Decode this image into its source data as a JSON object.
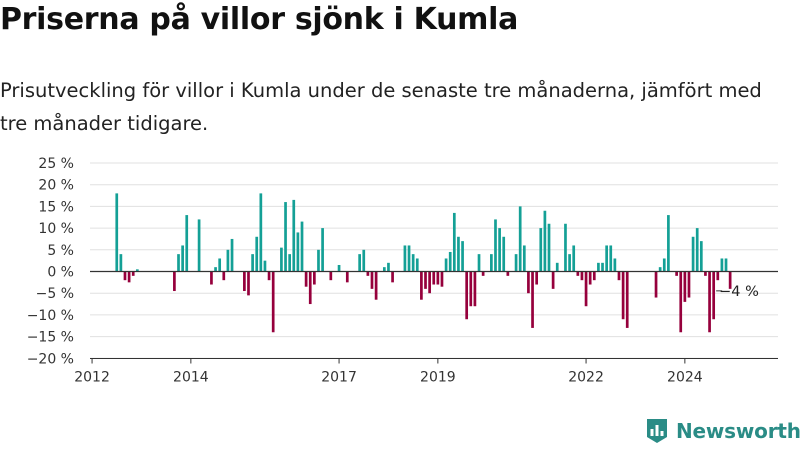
{
  "title": "Priserna på villor sjönk i Kumla",
  "subtitle": "Prisutveckling för villor i Kumla under de senaste tre månaderna, jämfört med tre månader tidigare.",
  "brand": {
    "name": "Newsworthy"
  },
  "colors": {
    "positive": "#14a096",
    "negative": "#96003c",
    "grid": "#e0e0e0",
    "axis": "#333333",
    "brand": "#2a8c86"
  },
  "chart_data": {
    "type": "bar",
    "title": "",
    "xlabel": "",
    "ylabel": "",
    "ylim": [
      -20,
      25
    ],
    "y_ticks": [
      25,
      20,
      15,
      10,
      5,
      0,
      -5,
      -10,
      -15,
      -20
    ],
    "y_tick_labels": [
      "25 %",
      "20 %",
      "15 %",
      "10 %",
      "5 %",
      "0 %",
      "−5 %",
      "−10 %",
      "−15 %",
      "−20 %"
    ],
    "x_ticks": [
      2012,
      2014,
      2017,
      2019,
      2022,
      2024
    ],
    "x_tick_labels": [
      "2012",
      "2014",
      "2017",
      "2019",
      "2022",
      "2024"
    ],
    "grid": true,
    "legend": "none",
    "annotation": {
      "label": "−4 %",
      "value": -4
    },
    "series": [
      {
        "values": [
          {
            "date": "2012-07",
            "value": 18
          },
          {
            "date": "2012-08",
            "value": 4
          },
          {
            "date": "2012-09",
            "value": -2
          },
          {
            "date": "2012-10",
            "value": -2.5
          },
          {
            "date": "2012-11",
            "value": -1
          },
          {
            "date": "2012-12",
            "value": 0.5
          },
          {
            "date": "2013-09",
            "value": -4.5
          },
          {
            "date": "2013-10",
            "value": 4
          },
          {
            "date": "2013-11",
            "value": 6
          },
          {
            "date": "2013-12",
            "value": 13
          },
          {
            "date": "2014-03",
            "value": 12
          },
          {
            "date": "2014-06",
            "value": -3
          },
          {
            "date": "2014-07",
            "value": 1
          },
          {
            "date": "2014-08",
            "value": 3
          },
          {
            "date": "2014-09",
            "value": -2
          },
          {
            "date": "2014-10",
            "value": 5
          },
          {
            "date": "2014-11",
            "value": 7.5
          },
          {
            "date": "2015-02",
            "value": -4.5
          },
          {
            "date": "2015-03",
            "value": -5.5
          },
          {
            "date": "2015-04",
            "value": 4
          },
          {
            "date": "2015-05",
            "value": 8
          },
          {
            "date": "2015-06",
            "value": 18
          },
          {
            "date": "2015-07",
            "value": 2.5
          },
          {
            "date": "2015-08",
            "value": -2
          },
          {
            "date": "2015-09",
            "value": -14
          },
          {
            "date": "2015-11",
            "value": 5.5
          },
          {
            "date": "2015-12",
            "value": 16
          },
          {
            "date": "2016-01",
            "value": 4
          },
          {
            "date": "2016-02",
            "value": 16.5
          },
          {
            "date": "2016-03",
            "value": 9
          },
          {
            "date": "2016-04",
            "value": 11.5
          },
          {
            "date": "2016-05",
            "value": -3.5
          },
          {
            "date": "2016-06",
            "value": -7.5
          },
          {
            "date": "2016-07",
            "value": -3
          },
          {
            "date": "2016-08",
            "value": 5
          },
          {
            "date": "2016-09",
            "value": 10
          },
          {
            "date": "2016-11",
            "value": -2
          },
          {
            "date": "2017-01",
            "value": 1.5
          },
          {
            "date": "2017-03",
            "value": -2.5
          },
          {
            "date": "2017-06",
            "value": 4
          },
          {
            "date": "2017-07",
            "value": 5
          },
          {
            "date": "2017-08",
            "value": -1
          },
          {
            "date": "2017-09",
            "value": -4
          },
          {
            "date": "2017-10",
            "value": -6.5
          },
          {
            "date": "2017-12",
            "value": 1
          },
          {
            "date": "2018-01",
            "value": 2
          },
          {
            "date": "2018-02",
            "value": -2.5
          },
          {
            "date": "2018-05",
            "value": 6
          },
          {
            "date": "2018-06",
            "value": 6
          },
          {
            "date": "2018-07",
            "value": 4
          },
          {
            "date": "2018-08",
            "value": 3
          },
          {
            "date": "2018-09",
            "value": -6.5
          },
          {
            "date": "2018-10",
            "value": -4
          },
          {
            "date": "2018-11",
            "value": -5
          },
          {
            "date": "2018-12",
            "value": -3
          },
          {
            "date": "2019-01",
            "value": -3
          },
          {
            "date": "2019-02",
            "value": -3.5
          },
          {
            "date": "2019-03",
            "value": 3
          },
          {
            "date": "2019-04",
            "value": 4.5
          },
          {
            "date": "2019-05",
            "value": 13.5
          },
          {
            "date": "2019-06",
            "value": 8
          },
          {
            "date": "2019-07",
            "value": 7
          },
          {
            "date": "2019-08",
            "value": -11
          },
          {
            "date": "2019-09",
            "value": -8
          },
          {
            "date": "2019-10",
            "value": -8
          },
          {
            "date": "2019-11",
            "value": 4
          },
          {
            "date": "2019-12",
            "value": -1
          },
          {
            "date": "2020-02",
            "value": 4
          },
          {
            "date": "2020-03",
            "value": 12
          },
          {
            "date": "2020-04",
            "value": 10
          },
          {
            "date": "2020-05",
            "value": 8
          },
          {
            "date": "2020-06",
            "value": -1
          },
          {
            "date": "2020-08",
            "value": 4
          },
          {
            "date": "2020-09",
            "value": 15
          },
          {
            "date": "2020-10",
            "value": 6
          },
          {
            "date": "2020-11",
            "value": -5
          },
          {
            "date": "2020-12",
            "value": -13
          },
          {
            "date": "2021-01",
            "value": -3
          },
          {
            "date": "2021-02",
            "value": 10
          },
          {
            "date": "2021-03",
            "value": 14
          },
          {
            "date": "2021-04",
            "value": 11
          },
          {
            "date": "2021-05",
            "value": -4
          },
          {
            "date": "2021-06",
            "value": 2
          },
          {
            "date": "2021-08",
            "value": 11
          },
          {
            "date": "2021-09",
            "value": 4
          },
          {
            "date": "2021-10",
            "value": 6
          },
          {
            "date": "2021-11",
            "value": -1
          },
          {
            "date": "2021-12",
            "value": -2
          },
          {
            "date": "2022-01",
            "value": -8
          },
          {
            "date": "2022-02",
            "value": -3
          },
          {
            "date": "2022-03",
            "value": -2
          },
          {
            "date": "2022-04",
            "value": 2
          },
          {
            "date": "2022-05",
            "value": 2
          },
          {
            "date": "2022-06",
            "value": 6
          },
          {
            "date": "2022-07",
            "value": 6
          },
          {
            "date": "2022-08",
            "value": 3
          },
          {
            "date": "2022-09",
            "value": -2
          },
          {
            "date": "2022-10",
            "value": -11
          },
          {
            "date": "2022-11",
            "value": -13
          },
          {
            "date": "2023-06",
            "value": -6
          },
          {
            "date": "2023-07",
            "value": 1
          },
          {
            "date": "2023-08",
            "value": 3
          },
          {
            "date": "2023-09",
            "value": 13
          },
          {
            "date": "2023-11",
            "value": -1
          },
          {
            "date": "2023-12",
            "value": -14
          },
          {
            "date": "2024-01",
            "value": -7
          },
          {
            "date": "2024-02",
            "value": -6
          },
          {
            "date": "2024-03",
            "value": 8
          },
          {
            "date": "2024-04",
            "value": 10
          },
          {
            "date": "2024-05",
            "value": 7
          },
          {
            "date": "2024-06",
            "value": -1
          },
          {
            "date": "2024-07",
            "value": -14
          },
          {
            "date": "2024-08",
            "value": -11
          },
          {
            "date": "2024-09",
            "value": -2
          },
          {
            "date": "2024-10",
            "value": 3
          },
          {
            "date": "2024-11",
            "value": 3
          },
          {
            "date": "2024-12",
            "value": -4
          }
        ]
      }
    ]
  }
}
